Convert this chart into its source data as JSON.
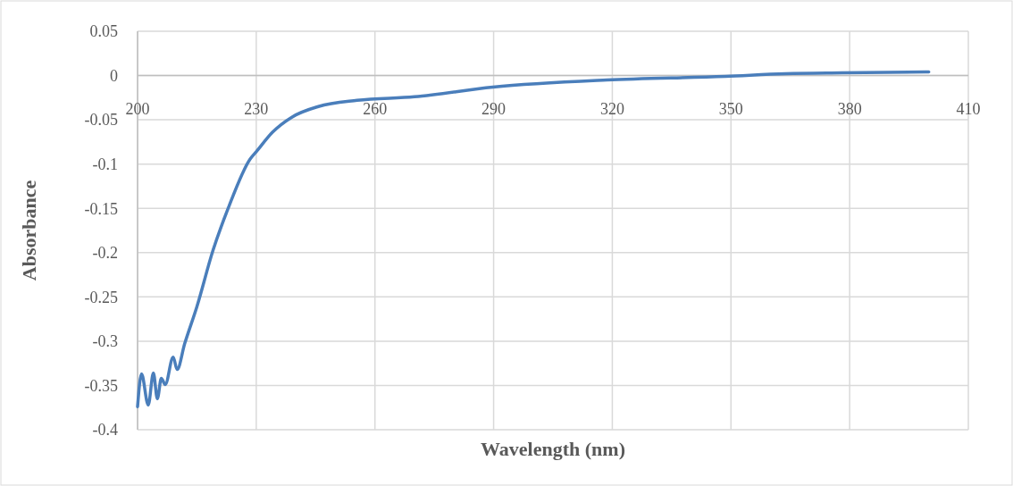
{
  "chart_data": {
    "type": "line",
    "xlabel": "Wavelength (nm)",
    "ylabel": "Absorbance",
    "xlim": [
      200,
      410
    ],
    "xticks": [
      200,
      230,
      260,
      290,
      320,
      350,
      380,
      410
    ],
    "ylim": [
      -0.4,
      0.05
    ],
    "yticks": [
      {
        "value": 0.05,
        "label": "0.05"
      },
      {
        "value": 0,
        "label": "0"
      },
      {
        "value": -0.05,
        "label": "-0.05"
      },
      {
        "value": -0.1,
        "label": "-0.1"
      },
      {
        "value": -0.15,
        "label": "-0.15"
      },
      {
        "value": -0.2,
        "label": "-0.2"
      },
      {
        "value": -0.25,
        "label": "-0.25"
      },
      {
        "value": -0.3,
        "label": "-0.3"
      },
      {
        "value": -0.35,
        "label": "-0.35"
      },
      {
        "value": -0.4,
        "label": "-0.4"
      }
    ],
    "grid": true,
    "series": [
      {
        "color": "#4a7ebb",
        "x": [
          200,
          201,
          202.7,
          204,
          205,
          206,
          207,
          209,
          210,
          211.9,
          215,
          219.1,
          222.9,
          228.5,
          230,
          234.1,
          239,
          245.7,
          255.5,
          270,
          289.8,
          318.6,
          348.5,
          363.8,
          378,
          400
        ],
        "values": [
          -0.374,
          -0.337,
          -0.372,
          -0.336,
          -0.365,
          -0.342,
          -0.349,
          -0.318,
          -0.332,
          -0.303,
          -0.261,
          -0.197,
          -0.15,
          -0.094,
          -0.086,
          -0.064,
          -0.047,
          -0.035,
          -0.028,
          -0.024,
          -0.013,
          -0.005,
          -0.001,
          0.002,
          0.003,
          0.004
        ]
      }
    ]
  }
}
